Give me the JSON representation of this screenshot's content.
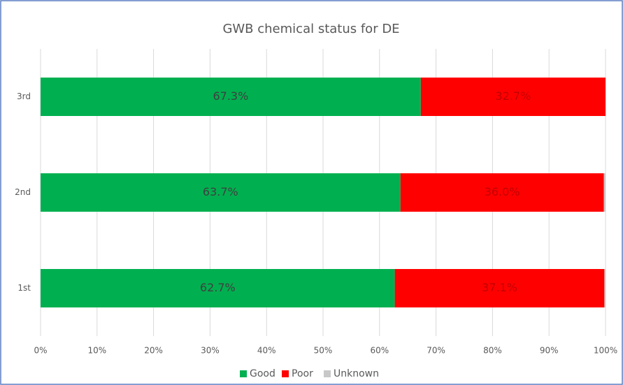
{
  "chart_data": {
    "type": "stacked_barh",
    "title": "GWB chemical status for DE",
    "categories": [
      "1st",
      "2nd",
      "3rd"
    ],
    "series": [
      {
        "name": "Good",
        "color": "#00b050",
        "values": [
          62.7,
          63.7,
          67.3
        ],
        "value_labels": [
          "62.7%",
          "63.7%",
          "67.3%"
        ]
      },
      {
        "name": "Poor",
        "color": "#ff0000",
        "values": [
          37.1,
          36.0,
          32.7
        ],
        "value_labels": [
          "37.1%",
          "36.0%",
          "32.7%"
        ]
      },
      {
        "name": "Unknown",
        "color": "#c8c8c8",
        "values": [
          0.2,
          0.3,
          0
        ]
      }
    ],
    "xlim": [
      0,
      100
    ],
    "xticks": [
      {
        "value": 0,
        "label": "0%"
      },
      {
        "value": 10,
        "label": "10%"
      },
      {
        "value": 20,
        "label": "20%"
      },
      {
        "value": 30,
        "label": "30%"
      },
      {
        "value": 40,
        "label": "40%"
      },
      {
        "value": 50,
        "label": "50%"
      },
      {
        "value": 60,
        "label": "60%"
      },
      {
        "value": 70,
        "label": "70%"
      },
      {
        "value": 80,
        "label": "80%"
      },
      {
        "value": 90,
        "label": "90%"
      },
      {
        "value": 100,
        "label": "100%"
      }
    ],
    "grid": true,
    "legend": "bottom"
  }
}
